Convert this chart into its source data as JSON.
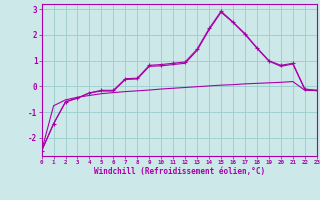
{
  "xlabel": "Windchill (Refroidissement éolien,°C)",
  "background_color": "#cce8e8",
  "grid_color": "#99cccc",
  "line_color": "#aa00aa",
  "x_hours": [
    0,
    1,
    2,
    3,
    4,
    5,
    6,
    7,
    8,
    9,
    10,
    11,
    12,
    13,
    14,
    15,
    16,
    17,
    18,
    19,
    20,
    21,
    22,
    23
  ],
  "series1": [
    -2.5,
    -1.45,
    -0.6,
    -0.45,
    -0.25,
    -0.15,
    -0.15,
    0.3,
    0.32,
    0.82,
    0.85,
    0.9,
    0.95,
    1.45,
    2.25,
    2.92,
    2.5,
    2.05,
    1.5,
    1.0,
    0.82,
    0.9,
    -0.1,
    -0.15
  ],
  "series2": [
    -2.5,
    -1.45,
    -0.6,
    -0.45,
    -0.25,
    -0.18,
    -0.18,
    0.27,
    0.29,
    0.78,
    0.8,
    0.85,
    0.9,
    1.4,
    2.2,
    2.88,
    2.48,
    2.02,
    1.48,
    0.98,
    0.78,
    0.87,
    -0.12,
    -0.17
  ],
  "series3": [
    -2.5,
    -0.75,
    -0.52,
    -0.42,
    -0.35,
    -0.28,
    -0.24,
    -0.2,
    -0.17,
    -0.14,
    -0.1,
    -0.07,
    -0.04,
    -0.01,
    0.02,
    0.05,
    0.07,
    0.1,
    0.12,
    0.14,
    0.16,
    0.19,
    -0.15,
    -0.15
  ],
  "ylim": [
    -2.7,
    3.2
  ],
  "yticks": [
    -2,
    -1,
    0,
    1,
    2,
    3
  ],
  "xlim": [
    0,
    23
  ]
}
